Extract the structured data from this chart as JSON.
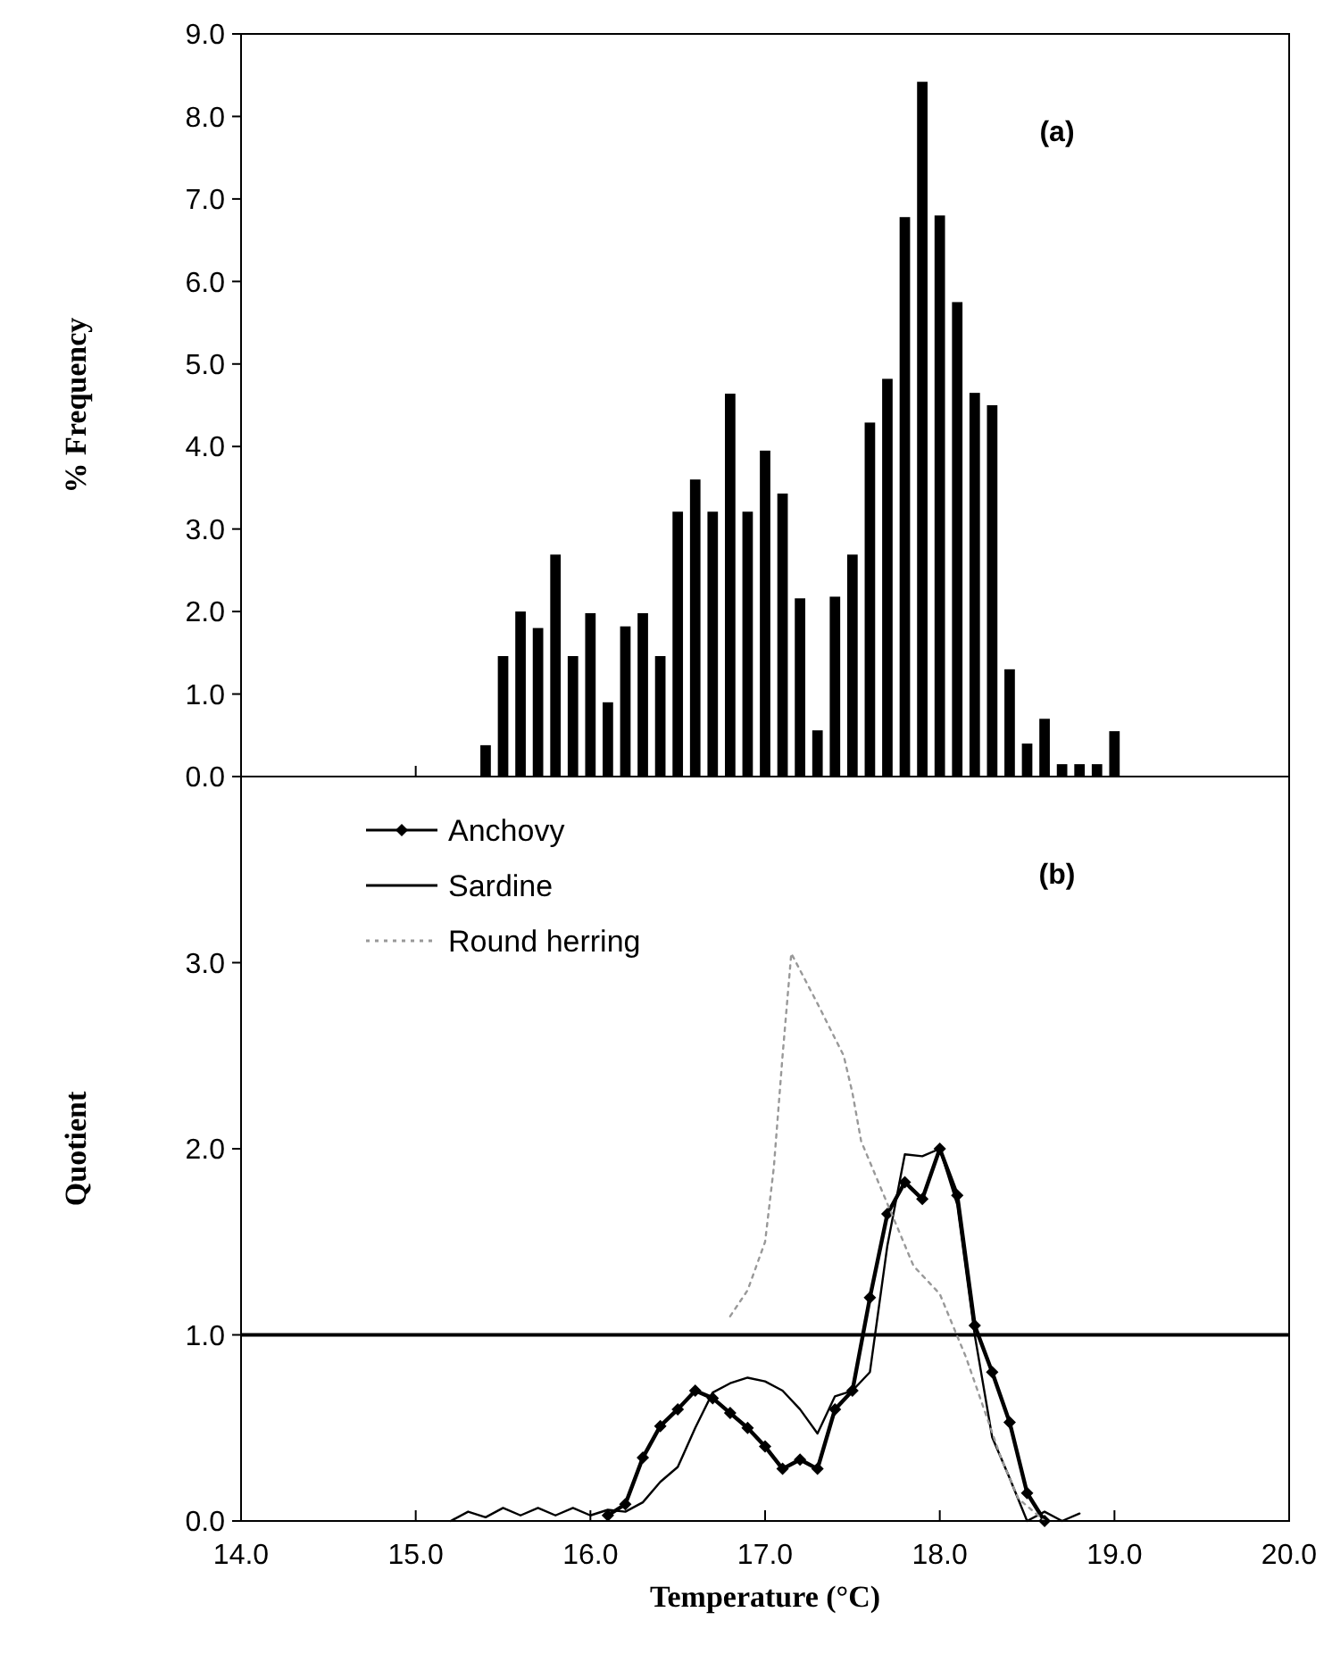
{
  "chart_data": [
    {
      "type": "bar",
      "ylabel": "% Frequency",
      "annotations": [
        "(a)"
      ],
      "color": "#000000",
      "x": [
        15.4,
        15.5,
        15.6,
        15.7,
        15.8,
        15.9,
        16.0,
        16.1,
        16.2,
        16.3,
        16.4,
        16.5,
        16.6,
        16.7,
        16.8,
        16.9,
        17.0,
        17.1,
        17.2,
        17.3,
        17.4,
        17.5,
        17.6,
        17.7,
        17.8,
        17.9,
        18.0,
        18.1,
        18.2,
        18.3,
        18.4,
        18.5,
        18.6,
        18.7,
        18.8,
        18.9,
        19.0
      ],
      "values": [
        0.38,
        1.46,
        2.0,
        1.8,
        2.69,
        1.46,
        1.98,
        0.9,
        1.82,
        1.98,
        1.46,
        3.21,
        3.6,
        3.21,
        4.64,
        3.21,
        3.95,
        3.43,
        2.16,
        0.56,
        2.18,
        2.69,
        4.29,
        4.82,
        6.78,
        8.42,
        6.8,
        5.75,
        4.65,
        4.5,
        1.3,
        0.4,
        0.7,
        0.15,
        0.15,
        0.15,
        0.55
      ],
      "xlim": [
        14,
        20
      ],
      "xticks": [
        {
          "value": 14,
          "label": null
        },
        {
          "value": 15,
          "label": null
        },
        {
          "value": 16,
          "label": null
        },
        {
          "value": 17,
          "label": null
        },
        {
          "value": 18,
          "label": null
        },
        {
          "value": 19,
          "label": null
        },
        {
          "value": 20,
          "label": null
        }
      ],
      "ylim": [
        0,
        9
      ],
      "yticks": [
        {
          "value": 0,
          "label": "0.0"
        },
        {
          "value": 1,
          "label": "1.0"
        },
        {
          "value": 2,
          "label": "2.0"
        },
        {
          "value": 3,
          "label": "3.0"
        },
        {
          "value": 4,
          "label": "4.0"
        },
        {
          "value": 5,
          "label": "5.0"
        },
        {
          "value": 6,
          "label": "6.0"
        },
        {
          "value": 7,
          "label": "7.0"
        },
        {
          "value": 8,
          "label": "8.0"
        },
        {
          "value": 9,
          "label": "9.0"
        }
      ],
      "tick_labels": "y",
      "grid": false,
      "legend": false
    },
    {
      "type": "line",
      "ylabel": "Quotient",
      "xlabel": "Temperature (°C)",
      "annotations": [
        "(b)"
      ],
      "legend": "top left",
      "grid": false,
      "series": [
        {
          "name": "Anchovy",
          "color": "#000000",
          "marker": "diamond",
          "line_style": "solid",
          "x": [
            16.1,
            16.2,
            16.3,
            16.4,
            16.5,
            16.6,
            16.7,
            16.8,
            16.9,
            17.0,
            17.1,
            17.2,
            17.3,
            17.4,
            17.5,
            17.6,
            17.7,
            17.8,
            17.9,
            18.0,
            18.1,
            18.2,
            18.3,
            18.4,
            18.5,
            18.6
          ],
          "values": [
            0.03,
            0.09,
            0.34,
            0.51,
            0.6,
            0.7,
            0.66,
            0.58,
            0.5,
            0.4,
            0.28,
            0.33,
            0.28,
            0.6,
            0.7,
            1.2,
            1.65,
            1.82,
            1.73,
            2.0,
            1.75,
            1.05,
            0.8,
            0.53,
            0.15,
            0.0
          ]
        },
        {
          "name": "Sardine",
          "color": "#000000",
          "marker": "none",
          "line_style": "solid",
          "x": [
            15.2,
            15.3,
            15.4,
            15.5,
            15.6,
            15.7,
            15.8,
            15.9,
            16.0,
            16.1,
            16.2,
            16.3,
            16.4,
            16.5,
            16.6,
            16.7,
            16.8,
            16.9,
            17.0,
            17.1,
            17.2,
            17.3,
            17.4,
            17.5,
            17.6,
            17.7,
            17.8,
            17.9,
            18.0,
            18.1,
            18.2,
            18.3,
            18.4,
            18.5,
            18.6,
            18.7,
            18.8
          ],
          "values": [
            0.0,
            0.05,
            0.02,
            0.07,
            0.03,
            0.07,
            0.03,
            0.07,
            0.03,
            0.06,
            0.05,
            0.1,
            0.21,
            0.29,
            0.5,
            0.69,
            0.74,
            0.77,
            0.75,
            0.7,
            0.6,
            0.47,
            0.67,
            0.7,
            0.8,
            1.48,
            1.97,
            1.96,
            2.0,
            1.7,
            1.0,
            0.45,
            0.23,
            0.0,
            0.05,
            0.0,
            0.04
          ]
        },
        {
          "name": "Round herring",
          "color": "#999999",
          "marker": "none",
          "line_style": "dotted",
          "x": [
            16.8,
            16.9,
            17.0,
            17.05,
            17.1,
            17.15,
            17.3,
            17.45,
            17.5,
            17.55,
            17.85,
            18.0,
            18.15,
            18.35,
            18.45,
            18.6
          ],
          "values": [
            1.1,
            1.24,
            1.5,
            1.9,
            2.5,
            3.05,
            2.78,
            2.5,
            2.3,
            2.04,
            1.37,
            1.22,
            0.88,
            0.34,
            0.12,
            0.0
          ]
        }
      ],
      "ref_lines": [
        {
          "axis": "y",
          "value": 1,
          "color": "#000000",
          "line_style": "solid"
        }
      ],
      "xlim": [
        14,
        20
      ],
      "xticks": [
        {
          "value": 14,
          "label": "14.0"
        },
        {
          "value": 15,
          "label": "15.0"
        },
        {
          "value": 16,
          "label": "16.0"
        },
        {
          "value": 17,
          "label": "17.0"
        },
        {
          "value": 18,
          "label": "18.0"
        },
        {
          "value": 19,
          "label": "19.0"
        },
        {
          "value": 20,
          "label": "20.0"
        }
      ],
      "ylim": [
        0,
        4
      ],
      "yticks": [
        {
          "value": 0,
          "label": "0.0"
        },
        {
          "value": 1,
          "label": "1.0"
        },
        {
          "value": 2,
          "label": "2.0"
        },
        {
          "value": 3,
          "label": "3.0"
        }
      ]
    }
  ]
}
